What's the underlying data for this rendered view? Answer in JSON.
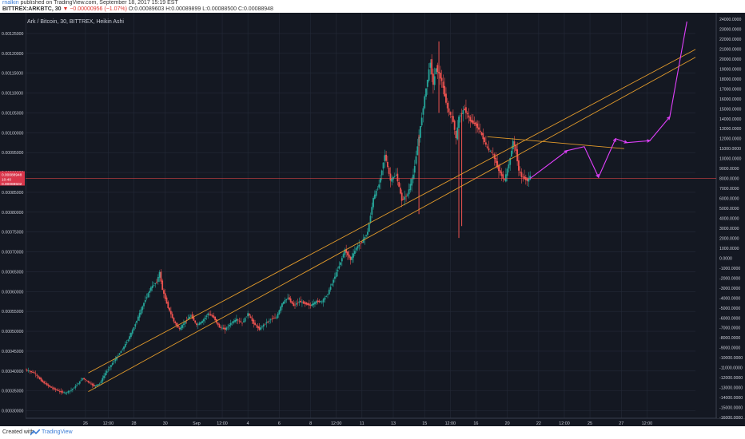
{
  "header": {
    "author": "rnalkin",
    "published_text": "published on TradingView.com, September 18, 2017 15:19 EST",
    "symbol": "BITTREX:ARKBTC, 30",
    "change_text": "▼ −0.00000956 (−1.07%)",
    "open": "O:0.00089603",
    "high": "H:0.00089899",
    "low": "L:0.00088500",
    "close": "C:0.00088948"
  },
  "chart_data": {
    "type": "candlestick",
    "title": "Ark / Bitcoin, 30, BITTREX, Heikin Ashi",
    "left_axis": {
      "labels": [
        "0.00125000",
        "0.00120000",
        "0.00115000",
        "0.00110000",
        "0.00105000",
        "0.00100000",
        "0.00095000",
        "0.00090000",
        "0.00085000",
        "0.00080000",
        "0.00075000",
        "0.00070000",
        "0.00065000",
        "0.00060000",
        "0.00055000",
        "0.00050000",
        "0.00045000",
        "0.00040000",
        "0.00035000",
        "0.00030000"
      ],
      "values": [
        0.00125,
        0.0012,
        0.00115,
        0.0011,
        0.00105,
        0.001,
        0.00095,
        0.0009,
        0.00085,
        0.0008,
        0.00075,
        0.0007,
        0.00065,
        0.0006,
        0.00055,
        0.0005,
        0.00045,
        0.0004,
        0.00035,
        0.0003
      ],
      "price_tag": "0.00088948",
      "time_tag": "10:40",
      "line_tag": "0.00088502"
    },
    "right_axis": {
      "labels": [
        "24000.0000",
        "23000.0000",
        "22000.0000",
        "21000.0000",
        "20000.0000",
        "19000.0000",
        "18000.0000",
        "17000.0000",
        "16000.0000",
        "15000.0000",
        "14000.0000",
        "13000.0000",
        "12000.0000",
        "11000.0000",
        "10000.0000",
        "9000.0000",
        "8000.0000",
        "7000.0000",
        "6000.0000",
        "5000.0000",
        "4000.0000",
        "3000.0000",
        "2000.0000",
        "1000.0000",
        "0.0000",
        "-1000.0000",
        "-2000.0000",
        "-3000.0000",
        "-4000.0000",
        "-5000.0000",
        "-6000.0000",
        "-7000.0000",
        "-8000.0000",
        "-9000.0000",
        "-10000.0000",
        "-11000.0000",
        "-12000.0000",
        "-13000.0000",
        "-14000.0000",
        "-15000.0000",
        "-16000.0000"
      ],
      "values": [
        24000,
        23000,
        22000,
        21000,
        20000,
        19000,
        18000,
        17000,
        16000,
        15000,
        14000,
        13000,
        12000,
        11000,
        10000,
        9000,
        8000,
        7000,
        6000,
        5000,
        4000,
        3000,
        2000,
        1000,
        0,
        -1000,
        -2000,
        -3000,
        -4000,
        -5000,
        -6000,
        -7000,
        -8000,
        -9000,
        -10000,
        -11000,
        -12000,
        -13000,
        -14000,
        -15000,
        -16000
      ]
    },
    "x_axis": {
      "labels": [
        "26",
        "12:00",
        "28",
        "30",
        "Sep",
        "12:00",
        "4",
        "6",
        "8",
        "12:00",
        "11",
        "13",
        "15",
        "12:00",
        "16",
        "20",
        "22",
        "12:00",
        "25",
        "27",
        "12:00"
      ],
      "index": [
        21,
        29,
        38,
        49,
        60,
        69,
        78,
        89,
        100,
        109,
        118,
        129,
        140,
        149,
        158,
        169,
        180,
        189,
        198,
        209,
        218
      ]
    },
    "x_range": [
      0,
      235
    ],
    "y_range": [
      0.000297,
      0.001274
    ],
    "price_path": [
      [
        0,
        0.000403
      ],
      [
        3,
        0.000395
      ],
      [
        6,
        0.000372
      ],
      [
        9,
        0.000358
      ],
      [
        12,
        0.000348
      ],
      [
        14,
        0.000345
      ],
      [
        16,
        0.000352
      ],
      [
        18,
        0.000365
      ],
      [
        20,
        0.000382
      ],
      [
        22,
        0.000372
      ],
      [
        24,
        0.000362
      ],
      [
        26,
        0.000368
      ],
      [
        28,
        0.000395
      ],
      [
        30,
        0.000415
      ],
      [
        32,
        0.000435
      ],
      [
        34,
        0.000455
      ],
      [
        36,
        0.00048
      ],
      [
        38,
        0.00051
      ],
      [
        40,
        0.000545
      ],
      [
        42,
        0.00058
      ],
      [
        44,
        0.00061
      ],
      [
        46,
        0.000625
      ],
      [
        47,
        0.000648
      ],
      [
        48,
        0.000605
      ],
      [
        50,
        0.00056
      ],
      [
        52,
        0.000525
      ],
      [
        54,
        0.000505
      ],
      [
        56,
        0.000525
      ],
      [
        58,
        0.00054
      ],
      [
        60,
        0.000515
      ],
      [
        62,
        0.000525
      ],
      [
        64,
        0.000545
      ],
      [
        66,
        0.000535
      ],
      [
        68,
        0.00051
      ],
      [
        70,
        0.000505
      ],
      [
        72,
        0.00052
      ],
      [
        74,
        0.00053
      ],
      [
        76,
        0.00052
      ],
      [
        78,
        0.000545
      ],
      [
        80,
        0.00052
      ],
      [
        82,
        0.000505
      ],
      [
        84,
        0.00052
      ],
      [
        86,
        0.00053
      ],
      [
        88,
        0.000535
      ],
      [
        90,
        0.00057
      ],
      [
        92,
        0.000585
      ],
      [
        94,
        0.000565
      ],
      [
        96,
        0.000575
      ],
      [
        98,
        0.00057
      ],
      [
        100,
        0.000565
      ],
      [
        102,
        0.000575
      ],
      [
        104,
        0.000575
      ],
      [
        106,
        0.000595
      ],
      [
        108,
        0.00063
      ],
      [
        110,
        0.000665
      ],
      [
        112,
        0.000705
      ],
      [
        114,
        0.00068
      ],
      [
        116,
        0.00071
      ],
      [
        118,
        0.000725
      ],
      [
        120,
        0.00075
      ],
      [
        122,
        0.000835
      ],
      [
        124,
        0.00087
      ],
      [
        126,
        0.000945
      ],
      [
        128,
        0.00088
      ],
      [
        130,
        0.000895
      ],
      [
        132,
        0.00083
      ],
      [
        134,
        0.000845
      ],
      [
        136,
        0.000895
      ],
      [
        138,
        0.00099
      ],
      [
        140,
        0.00109
      ],
      [
        142,
        0.00118
      ],
      [
        143,
        0.00112
      ],
      [
        144,
        0.001165
      ],
      [
        146,
        0.00113
      ],
      [
        148,
        0.00106
      ],
      [
        150,
        0.00103
      ],
      [
        151,
        0.000985
      ],
      [
        152,
        0.00104
      ],
      [
        154,
        0.00106
      ],
      [
        156,
        0.00103
      ],
      [
        158,
        0.00102
      ],
      [
        160,
        0.000995
      ],
      [
        162,
        0.00096
      ],
      [
        164,
        0.000945
      ],
      [
        166,
        0.000905
      ],
      [
        168,
        0.00088
      ],
      [
        170,
        0.000935
      ],
      [
        171,
        0.00098
      ],
      [
        172,
        0.000955
      ],
      [
        173,
        0.000905
      ],
      [
        174,
        0.00089
      ],
      [
        176,
        0.00088
      ],
      [
        177,
        0.00089
      ]
    ],
    "spikes": [
      {
        "i": 138,
        "low": 0.000795,
        "high": 0.000995
      },
      {
        "i": 152,
        "low": 0.000735,
        "high": 0.00101
      },
      {
        "i": 153,
        "low": 0.000765,
        "high": 0.00105
      },
      {
        "i": 145,
        "low": 0.00105,
        "high": 0.00123
      }
    ],
    "colors": {
      "background": "#141822",
      "grid": "#242a38",
      "up": "#26a69a",
      "down": "#ef5350",
      "trendline": "#e39b2b",
      "projection": "#e040fb",
      "price_line": "#ff4d4d",
      "axis_text": "#c9ccd6"
    },
    "trendlines": [
      {
        "name": "upper-channel",
        "from": [
          22,
          0.000395
        ],
        "to": [
          235,
          0.00121
        ]
      },
      {
        "name": "lower-channel",
        "from": [
          22,
          0.000348
        ],
        "to": [
          235,
          0.00119
        ]
      },
      {
        "name": "descending-resistance",
        "from": [
          162,
          0.00099
        ],
        "to": [
          210,
          0.00096
        ]
      }
    ],
    "price_line_value": 0.00088502,
    "projection_path": [
      [
        177,
        0.000885
      ],
      [
        190,
        0.000955
      ],
      [
        196,
        0.000965
      ],
      [
        201,
        0.000888
      ],
      [
        207,
        0.000985
      ],
      [
        211,
        0.000975
      ],
      [
        219,
        0.00098
      ],
      [
        226,
        0.00104
      ],
      [
        232,
        0.00128
      ]
    ]
  },
  "footer": {
    "created_with": "Created with",
    "brand": "TradingView"
  }
}
